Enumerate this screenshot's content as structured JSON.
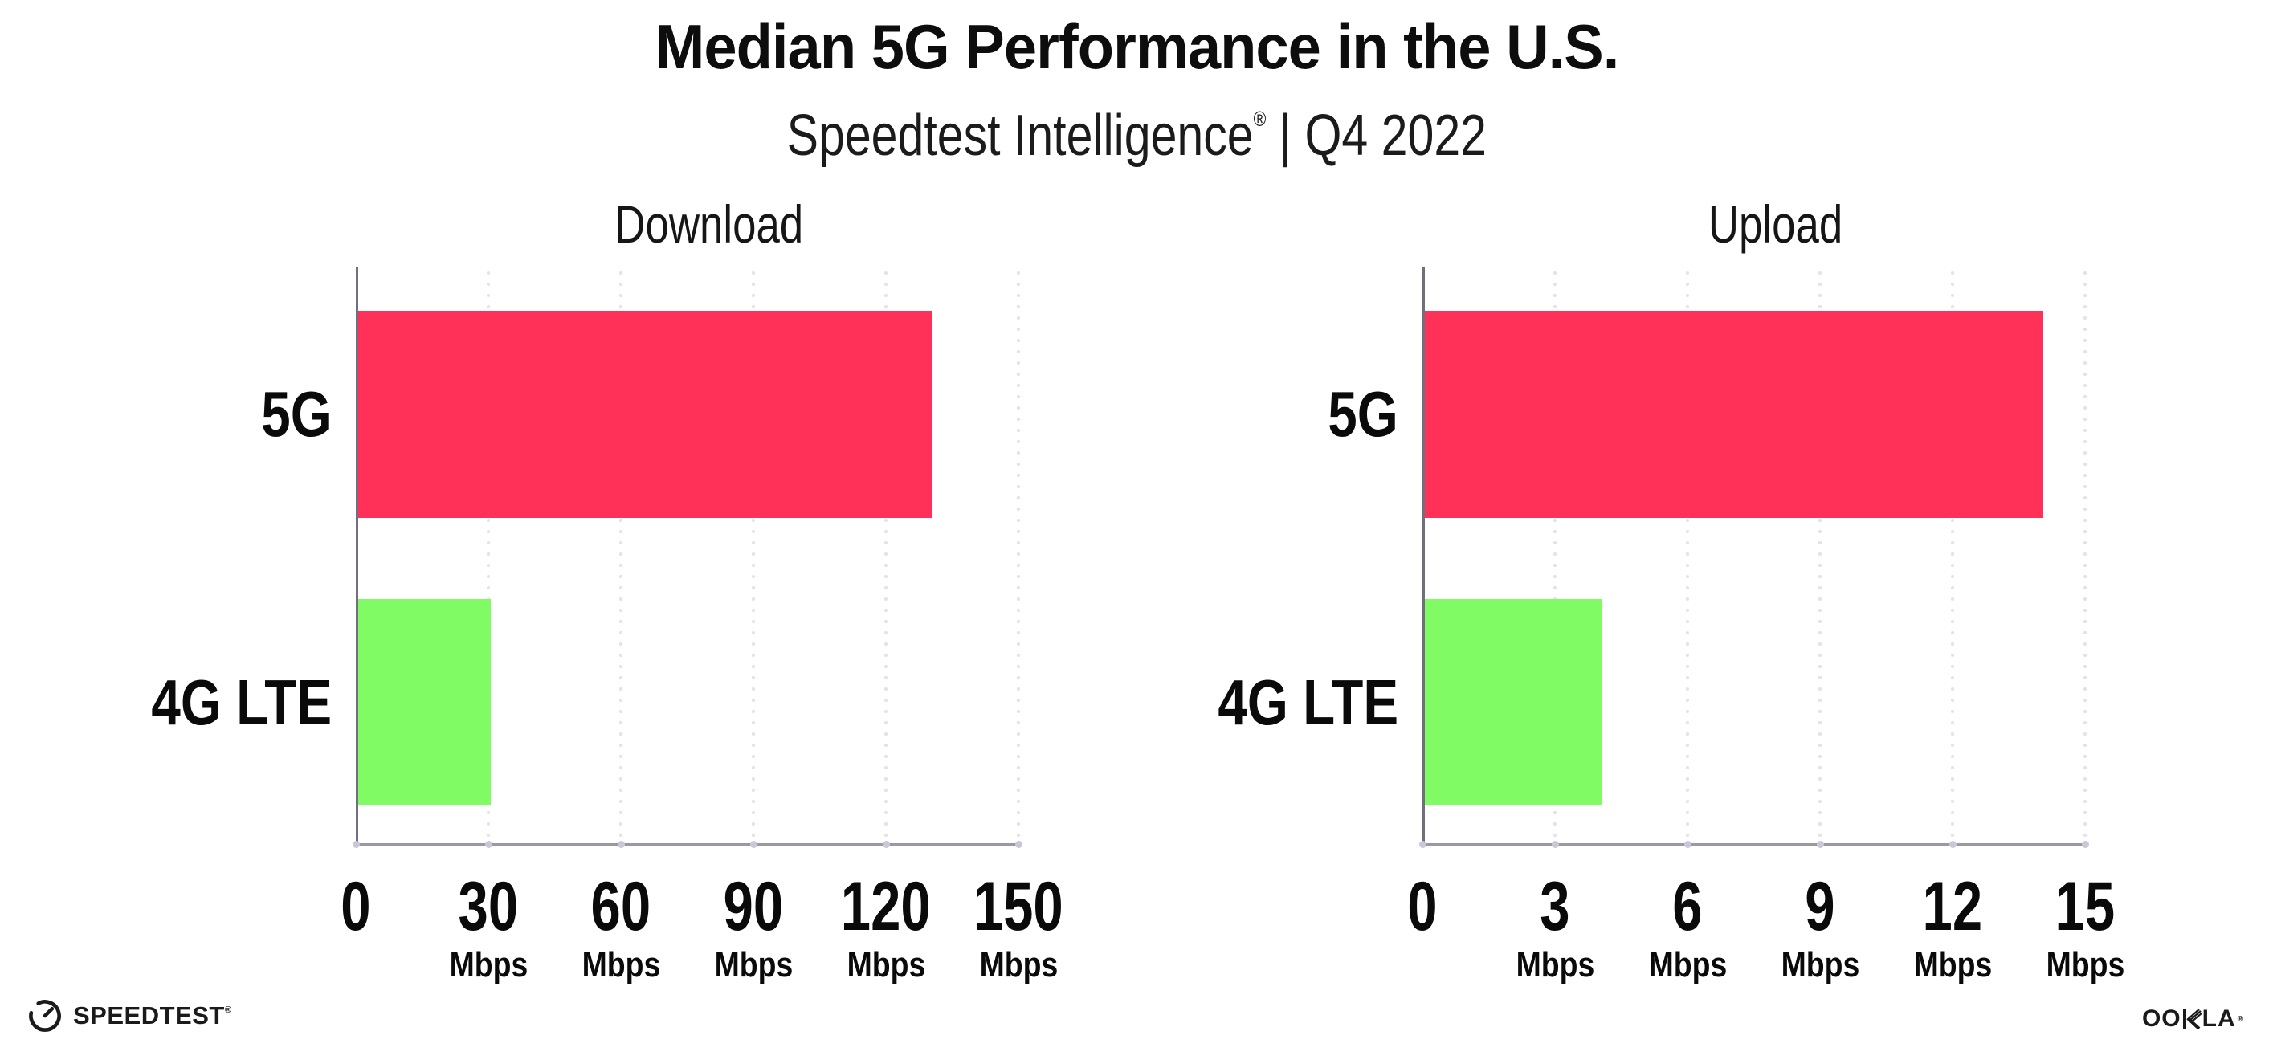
{
  "header": {
    "title": "Median 5G Performance in the U.S.",
    "subtitle_brand": "Speedtest Intelligence",
    "registered_mark": "®",
    "subtitle_rest": " | Q4 2022"
  },
  "chart_data": [
    {
      "type": "bar",
      "orientation": "horizontal",
      "title": "Download",
      "categories": [
        "5G",
        "4G LTE"
      ],
      "values": [
        130,
        30
      ],
      "unit": "Mbps",
      "xlabel": "",
      "ylabel": "",
      "xlim": [
        0,
        150
      ],
      "xticks": [
        0,
        30,
        60,
        90,
        120,
        150
      ],
      "bar_colors": [
        "#FF3158",
        "#80FB63"
      ],
      "grid": "dotted-vertical-gridlines",
      "legend": "none"
    },
    {
      "type": "bar",
      "orientation": "horizontal",
      "title": "Upload",
      "categories": [
        "5G",
        "4G LTE"
      ],
      "values": [
        14,
        4
      ],
      "unit": "Mbps",
      "xlabel": "",
      "ylabel": "",
      "xlim": [
        0,
        15
      ],
      "xticks": [
        0,
        3,
        6,
        9,
        12,
        15
      ],
      "bar_colors": [
        "#FF3158",
        "#80FB63"
      ],
      "grid": "dotted-vertical-gridlines",
      "legend": "none"
    }
  ],
  "footer": {
    "speedtest_label": "SPEEDTEST",
    "speedtest_mark": "®",
    "ookla_left": "OO",
    "ookla_right": "LA",
    "ookla_mark": "®"
  },
  "colors": {
    "bar_5g": "#FF3158",
    "bar_4g_lte": "#80FB63",
    "axis_y": "#716F7C",
    "axis_x": "#9B99A6",
    "grid_dot": "#E3E2ED",
    "tick_dot": "#C9C8D8",
    "text": "#111111",
    "background": "#FFFFFF"
  }
}
